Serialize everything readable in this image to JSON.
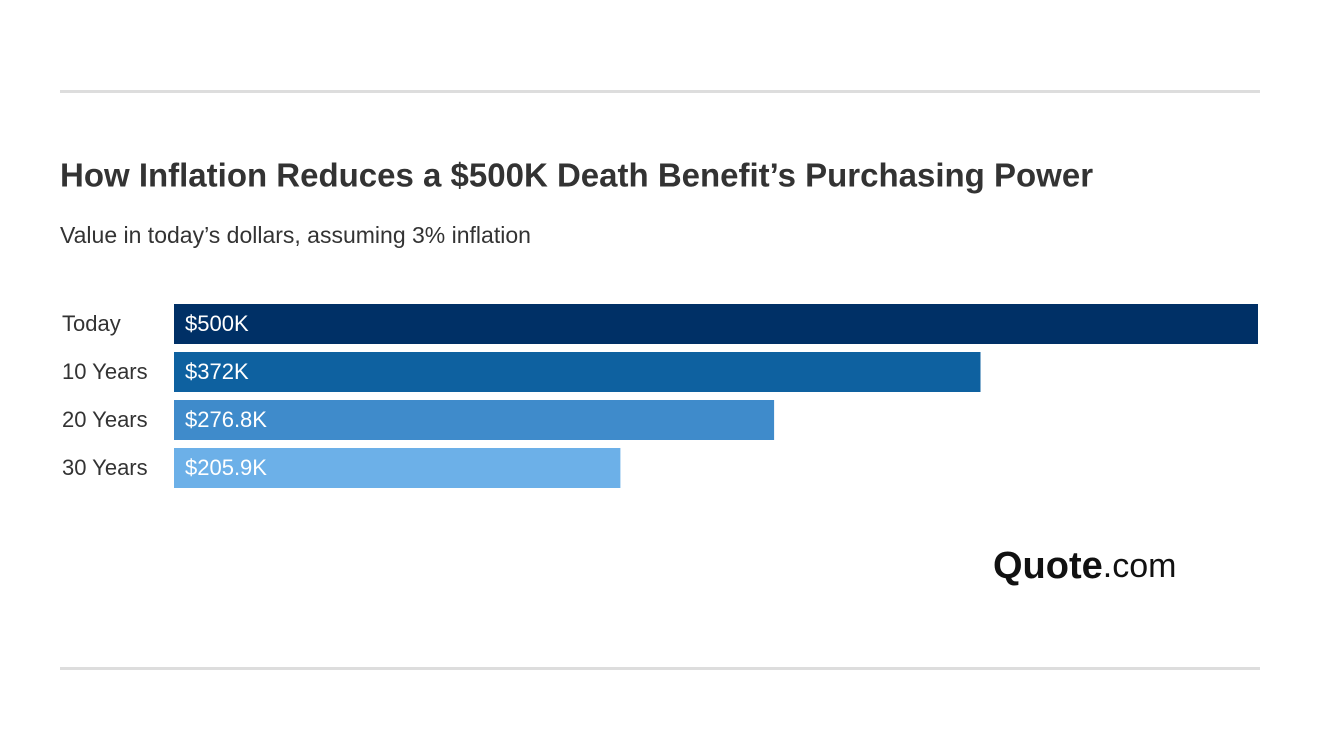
{
  "chart_data": {
    "type": "bar",
    "orientation": "horizontal",
    "title": "How Inflation Reduces a $500K Death Benefit’s Purchasing Power",
    "subtitle": "Value in today’s dollars, assuming 3% inflation",
    "categories": [
      "Today",
      "10 Years",
      "20 Years",
      "30 Years"
    ],
    "values": [
      500,
      372,
      276.8,
      205.9
    ],
    "value_labels": [
      "$500K",
      "$372K",
      "$276.8K",
      "$205.9K"
    ],
    "colors": [
      "#003066",
      "#0e61a0",
      "#3f8bcb",
      "#6cb0e8"
    ]
  },
  "brand": {
    "name": "Quote",
    "suffix": ".com"
  }
}
